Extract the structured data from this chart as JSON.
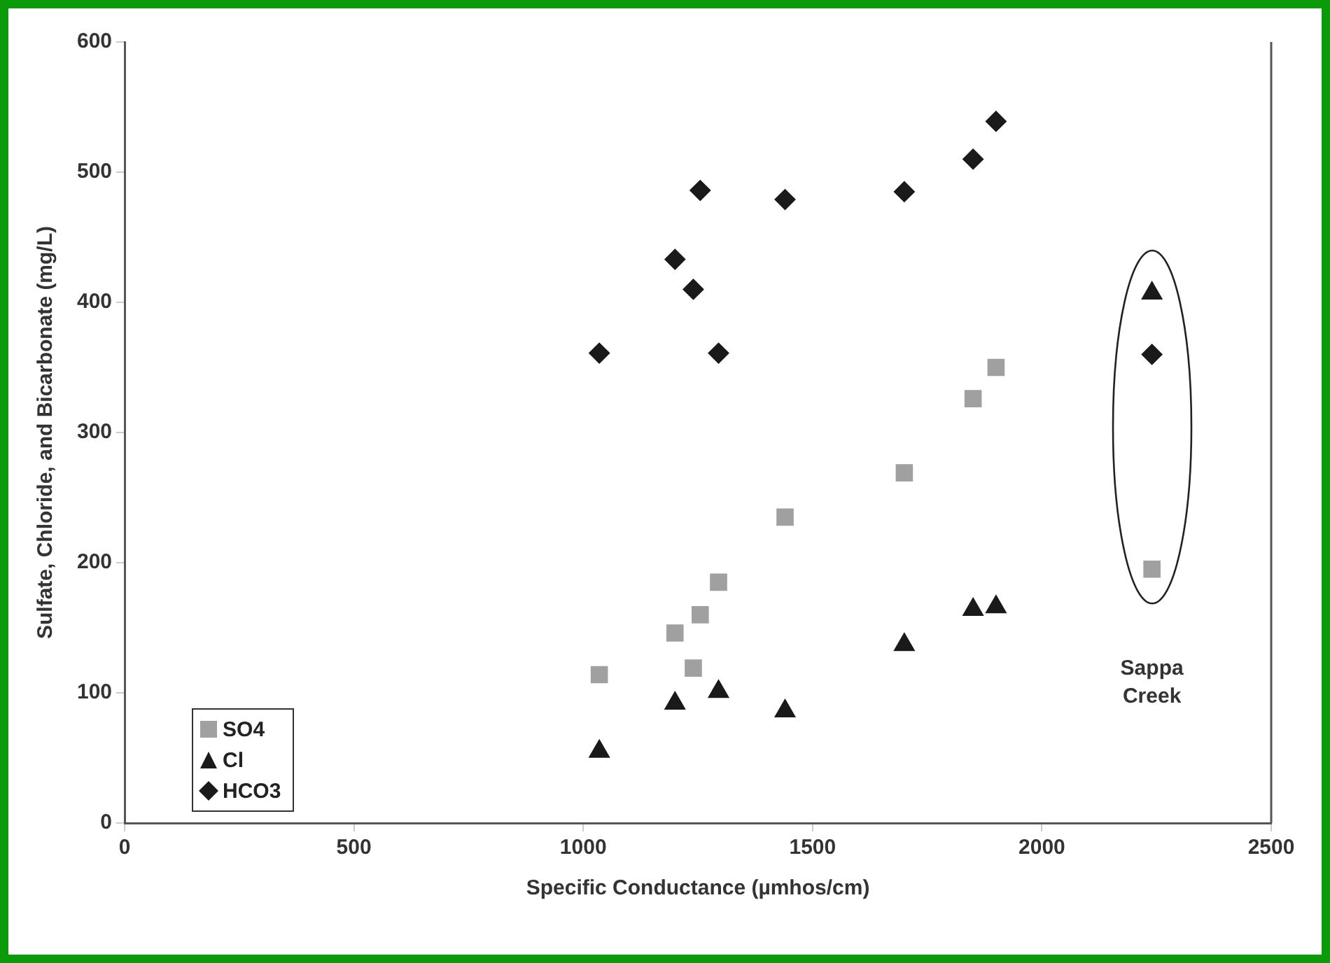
{
  "chart_data": {
    "type": "scatter",
    "xlabel": "Specific Conductance (µmhos/cm)",
    "ylabel": "Sulfate, Chloride, and Bicarbonate (mg/L)",
    "xlim": [
      0,
      2500
    ],
    "xticks": [
      0,
      500,
      1000,
      1500,
      2000,
      2500
    ],
    "ylim": [
      0,
      600
    ],
    "yticks": [
      0,
      100,
      200,
      300,
      400,
      500,
      600
    ],
    "grid": false,
    "legend": "bottom left",
    "series": [
      {
        "name": "SO4",
        "color": "#a0a0a0",
        "marker": "square",
        "x": [
          1035,
          1200,
          1240,
          1255,
          1295,
          1440,
          1700,
          1850,
          1900,
          2240
        ],
        "values": [
          114,
          146,
          119,
          160,
          185,
          235,
          269,
          326,
          350,
          195
        ]
      },
      {
        "name": "Cl",
        "color": "#1a1a1a",
        "marker": "triangle",
        "x": [
          1035,
          1200,
          1295,
          1440,
          1700,
          1850,
          1900,
          2240
        ],
        "values": [
          55,
          92,
          101,
          86,
          137,
          164,
          166,
          407
        ]
      },
      {
        "name": "HCO3",
        "color": "#1a1a1a",
        "marker": "diamond",
        "x": [
          1035,
          1200,
          1240,
          1255,
          1295,
          1440,
          1700,
          1850,
          1900,
          2240
        ],
        "values": [
          361,
          433,
          410,
          486,
          361,
          479,
          485,
          510,
          539,
          360
        ]
      }
    ],
    "annotations": [
      "Sappa Creek"
    ]
  }
}
